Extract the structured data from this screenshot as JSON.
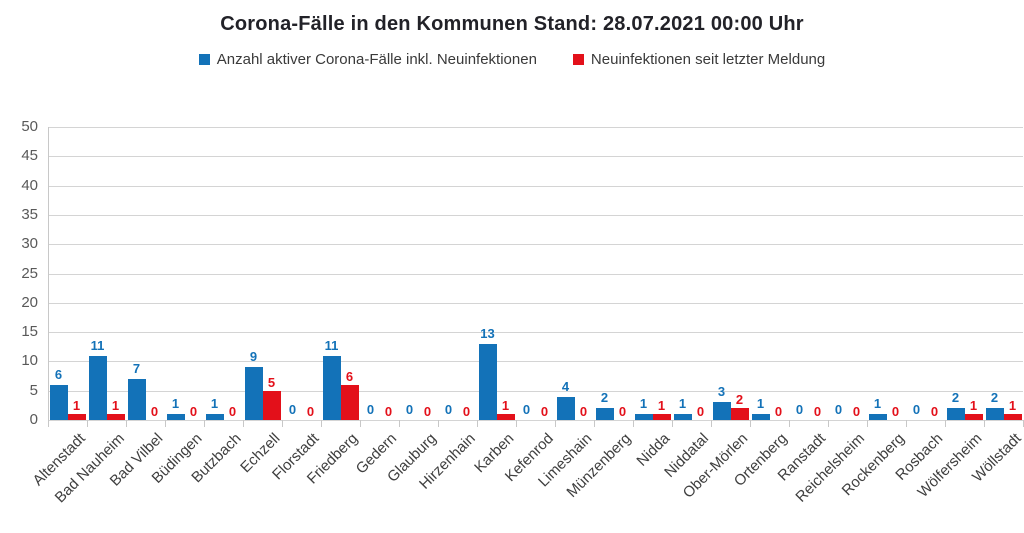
{
  "chart_data": {
    "type": "bar",
    "title": "Corona-Fälle in den Kommunen Stand: 28.07.2021 00:00 Uhr",
    "categories": [
      "Altenstadt",
      "Bad Nauheim",
      "Bad Vilbel",
      "Büdingen",
      "Butzbach",
      "Echzell",
      "Florstadt",
      "Friedberg",
      "Gedern",
      "Glauburg",
      "Hirzenhain",
      "Karben",
      "Kefenrod",
      "Limeshain",
      "Münzenberg",
      "Nidda",
      "Niddatal",
      "Ober-Mörlen",
      "Ortenberg",
      "Ranstadt",
      "Reichelsheim",
      "Rockenberg",
      "Rosbach",
      "Wölfersheim",
      "Wöllstadt"
    ],
    "series": [
      {
        "name": "Anzahl aktiver Corona-Fälle inkl. Neuinfektionen",
        "color": "#1372b8",
        "values": [
          6,
          11,
          7,
          1,
          1,
          9,
          0,
          11,
          0,
          0,
          0,
          13,
          0,
          4,
          2,
          1,
          1,
          3,
          1,
          0,
          0,
          1,
          0,
          2,
          2
        ]
      },
      {
        "name": "Neuinfektionen seit letzter Meldung",
        "color": "#e3101a",
        "values": [
          1,
          1,
          0,
          0,
          0,
          5,
          0,
          6,
          0,
          0,
          0,
          1,
          0,
          0,
          0,
          1,
          0,
          2,
          0,
          0,
          0,
          0,
          0,
          1,
          1
        ]
      }
    ],
    "xlabel": "",
    "ylabel": "",
    "ylim": [
      0,
      50
    ],
    "yticks": [
      0,
      5,
      10,
      15,
      20,
      25,
      30,
      35,
      40,
      45,
      50
    ],
    "grid": true,
    "legend_position": "top",
    "data_labels": true,
    "style_colors": {
      "grid": "#d4d4d4",
      "axis": "#c8c8c8",
      "y_tick_labels": "#595959",
      "x_tick_labels": "#3f3f3f",
      "title_text": "#222228",
      "legend_text": "#3a3a3a"
    }
  }
}
